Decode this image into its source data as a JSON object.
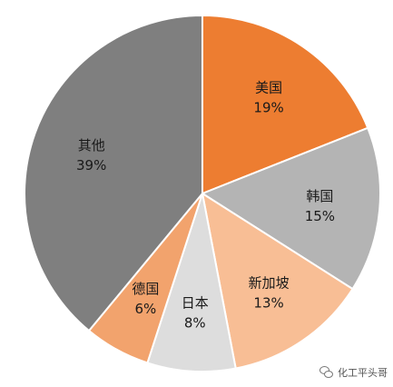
{
  "chart_data": {
    "type": "pie",
    "start_angle_deg": 0,
    "direction": "clockwise",
    "slices": [
      {
        "label": "美国",
        "value": 19,
        "value_label": "19%",
        "color": "#ED7D31"
      },
      {
        "label": "韩国",
        "value": 15,
        "value_label": "15%",
        "color": "#B4B4B4"
      },
      {
        "label": "新加坡",
        "value": 13,
        "value_label": "13%",
        "color": "#F8BE95"
      },
      {
        "label": "日本",
        "value": 8,
        "value_label": "8%",
        "color": "#DDDDDD"
      },
      {
        "label": "德国",
        "value": 6,
        "value_label": "6%",
        "color": "#F2A36D"
      },
      {
        "label": "其他",
        "value": 39,
        "value_label": "39%",
        "color": "#7F7F7F"
      }
    ]
  },
  "watermark": {
    "text": "化工平头哥",
    "icon": "wechat-icon"
  }
}
